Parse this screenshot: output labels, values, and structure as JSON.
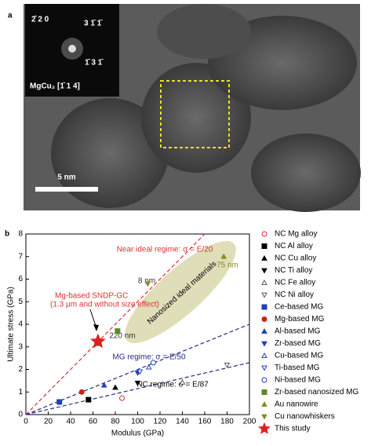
{
  "panel_a": {
    "label": "a",
    "inset_title": "MgCu₂ [1̄ 1 4]",
    "spots": [
      "2̄ 2 0",
      "3 1̄ 1̄",
      "1̄ 3 1̄"
    ],
    "scale_bar": "5 nm"
  },
  "chart_data": {
    "type": "scatter",
    "panel_label": "b",
    "x_label": "Modulus (GPa)",
    "y_label": "Ultimate stress (GPa)",
    "xlim": [
      0,
      200
    ],
    "xticks": [
      0,
      20,
      40,
      60,
      80,
      100,
      120,
      140,
      160,
      180,
      200
    ],
    "ylim": [
      0,
      8
    ],
    "yticks": [
      0,
      1,
      2,
      3,
      4,
      5,
      6,
      7,
      8
    ],
    "reference_lines": [
      {
        "label": "Near ideal regime: σ = E/20",
        "slope": 0.05,
        "color": "#e03030"
      },
      {
        "label": "MG regime: σ = E/50",
        "slope": 0.02,
        "color": "#2a2a8a"
      },
      {
        "label": "NC regime: σ = E/87",
        "slope": 0.0115,
        "color": "#2a2a8a"
      }
    ],
    "annotations": [
      "Mg-based SNDP-GC",
      "(1.3 μm and without size effect)",
      "Nanosized ideal materials",
      "8 nm",
      "75 nm",
      "220 nm"
    ],
    "series": [
      {
        "name": "NC Mg alloy",
        "color": "#e03030",
        "marker": "circle",
        "filled": false,
        "x": [
          86
        ],
        "values": [
          0.73
        ]
      },
      {
        "name": "NC Al alloy",
        "color": "#000000",
        "marker": "square",
        "filled": true,
        "x": [
          56
        ],
        "values": [
          0.66
        ]
      },
      {
        "name": "NC Cu alloy",
        "color": "#000000",
        "marker": "up",
        "filled": true,
        "x": [
          80
        ],
        "values": [
          1.2
        ]
      },
      {
        "name": "NC Ti alloy",
        "color": "#000000",
        "marker": "down",
        "filled": true,
        "x": [
          100
        ],
        "values": [
          1.4
        ]
      },
      {
        "name": "NC Fe alloy",
        "color": "#555555",
        "marker": "up",
        "filled": false,
        "x": [
          140
        ],
        "values": [
          1.43
        ]
      },
      {
        "name": "NC Ni alloy",
        "color": "#555555",
        "marker": "down",
        "filled": false,
        "x": [
          180
        ],
        "values": [
          2.2
        ]
      },
      {
        "name": "Ce-based MG",
        "color": "#1f3fbf",
        "marker": "square",
        "filled": true,
        "x": [
          30
        ],
        "values": [
          0.56
        ]
      },
      {
        "name": "Mg-based MG",
        "color": "#d02020",
        "marker": "circle",
        "filled": true,
        "x": [
          50
        ],
        "values": [
          1.0
        ]
      },
      {
        "name": "Al-based MG",
        "color": "#1f3fbf",
        "marker": "up",
        "filled": true,
        "x": [
          70
        ],
        "values": [
          1.3
        ]
      },
      {
        "name": "Zr-based MG",
        "color": "#1f3fbf",
        "marker": "down",
        "filled": true,
        "x": [
          100
        ],
        "values": [
          1.85
        ]
      },
      {
        "name": "Cu-based MG",
        "color": "#1f3fbf",
        "marker": "up",
        "filled": false,
        "x": [
          110
        ],
        "values": [
          2.1
        ]
      },
      {
        "name": "Ti-based MG",
        "color": "#1f3fbf",
        "marker": "down",
        "filled": false,
        "x": [
          102
        ],
        "values": [
          1.9
        ]
      },
      {
        "name": "Ni-based MG",
        "color": "#1f3fbf",
        "marker": "circle",
        "filled": false,
        "x": [
          114
        ],
        "values": [
          2.3
        ]
      },
      {
        "name": "Zr-based nanosized MG",
        "color": "#5a8a20",
        "marker": "square",
        "filled": true,
        "x": [
          82
        ],
        "values": [
          3.7
        ]
      },
      {
        "name": "Au nanowire",
        "color": "#8a8a20",
        "marker": "up",
        "filled": true,
        "x": [
          177
        ],
        "values": [
          7.0
        ]
      },
      {
        "name": "Cu nanowhiskers",
        "color": "#8a8a20",
        "marker": "down",
        "filled": true,
        "x": [
          109
        ],
        "values": [
          5.8
        ]
      },
      {
        "name": "This study",
        "color": "#e02020",
        "marker": "star",
        "filled": true,
        "x": [
          64.5
        ],
        "values": [
          3.24
        ],
        "errors": [
          0.2
        ]
      }
    ]
  }
}
